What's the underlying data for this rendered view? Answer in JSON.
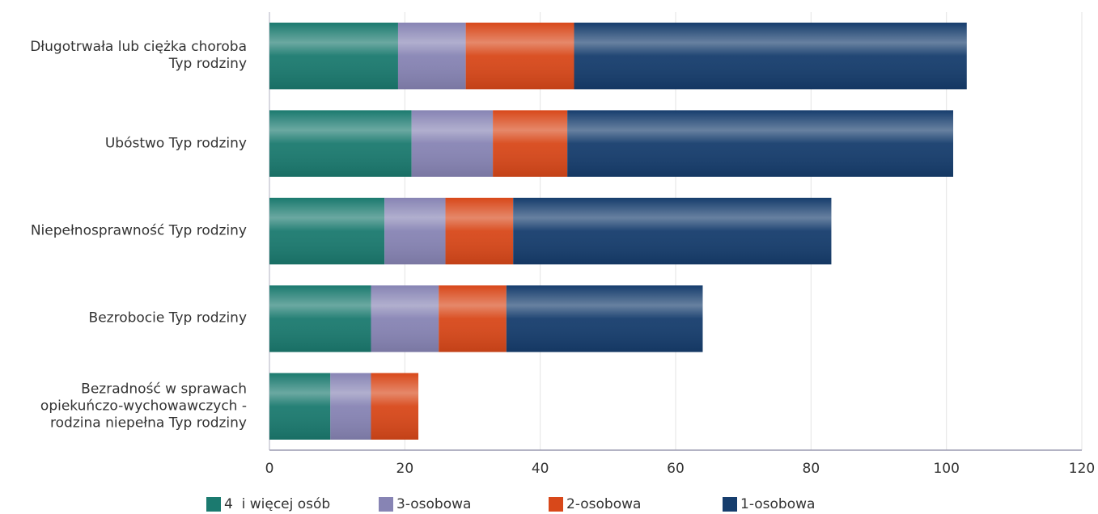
{
  "chart_data": {
    "type": "bar",
    "orientation": "horizontal",
    "stacked": true,
    "categories": [
      "Długotrwała lub ciężka choroba Typ rodziny",
      "Ubóstwo Typ rodziny",
      "Niepełnosprawność Typ rodziny",
      "Bezrobocie Typ rodziny",
      "Bezradność w sprawach opiekuńczo-wychowawczych - rodzina niepełna Typ rodziny"
    ],
    "series": [
      {
        "name": "4  i więcej osób",
        "color": "#1b7a6f",
        "values": [
          19,
          21,
          17,
          15,
          9
        ]
      },
      {
        "name": "3-osobowa",
        "color": "#8784b4",
        "values": [
          10,
          12,
          9,
          10,
          6
        ]
      },
      {
        "name": "2-osobowa",
        "color": "#d8481a",
        "values": [
          16,
          11,
          10,
          10,
          7
        ]
      },
      {
        "name": "1-osobowa",
        "color": "#163d6d",
        "values": [
          58,
          57,
          47,
          29,
          0
        ]
      }
    ],
    "xlim": [
      0,
      120
    ],
    "xticks": [
      0,
      20,
      40,
      60,
      80,
      100,
      120
    ],
    "grid": true,
    "legend": "bottom"
  }
}
